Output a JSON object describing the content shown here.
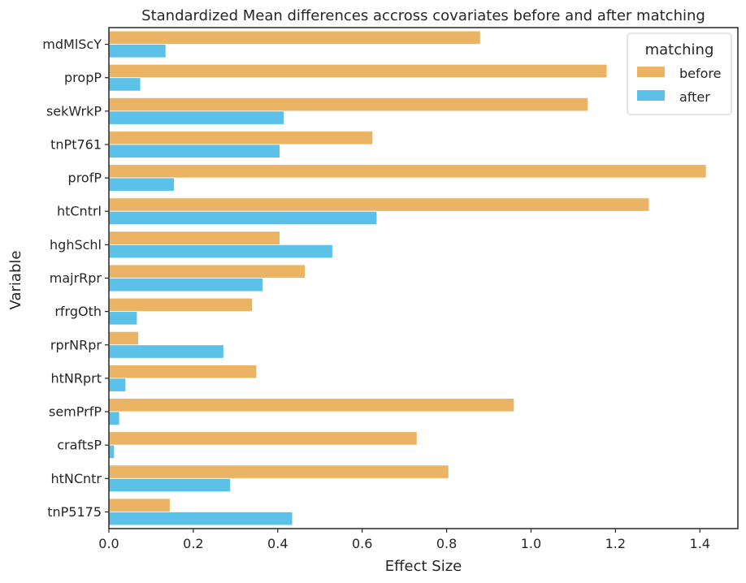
{
  "chart_data": {
    "type": "bar",
    "orientation": "horizontal",
    "title": "Standardized Mean differences accross covariates before and after matching",
    "xlabel": "Effect Size",
    "ylabel": "Variable",
    "xlim": [
      0,
      1.49
    ],
    "xticks": [
      "0.0",
      "0.2",
      "0.4",
      "0.6",
      "0.8",
      "1.0",
      "1.2",
      "1.4"
    ],
    "grid": false,
    "categories": [
      "mdMlScY",
      "propP",
      "sekWrkP",
      "tnPt761",
      "profP",
      "htCntrl",
      "hghSchl",
      "majrRpr",
      "rfrgOth",
      "rprNRpr",
      "htNRprt",
      "semPrfP",
      "craftsP",
      "htNCntr",
      "tnP5175"
    ],
    "legend": {
      "title": "matching",
      "position": "top-right"
    },
    "series": [
      {
        "name": "before",
        "color": "#EBB465",
        "values": [
          0.88,
          1.18,
          1.135,
          0.625,
          1.415,
          1.28,
          0.405,
          0.465,
          0.34,
          0.07,
          0.35,
          0.96,
          0.73,
          0.805,
          0.145
        ]
      },
      {
        "name": "after",
        "color": "#5CC1E8",
        "values": [
          0.135,
          0.075,
          0.415,
          0.405,
          0.155,
          0.635,
          0.53,
          0.365,
          0.067,
          0.272,
          0.04,
          0.025,
          0.013,
          0.288,
          0.435
        ]
      }
    ]
  }
}
